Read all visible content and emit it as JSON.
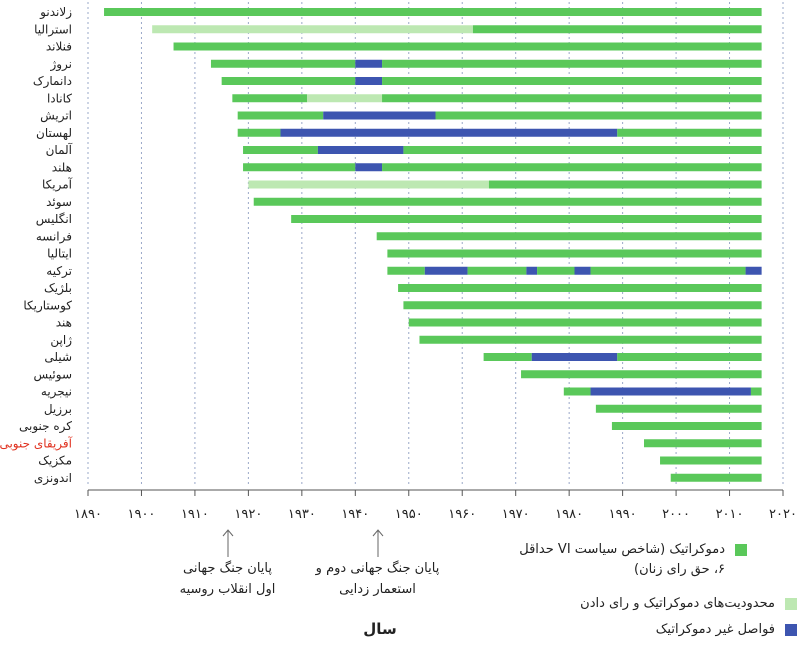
{
  "chart_data": {
    "type": "bar",
    "orientation": "horizontal-timeline",
    "xlabel": "سال",
    "xlim": [
      1890,
      2020
    ],
    "xtick_values": [
      1890,
      1900,
      1910,
      1920,
      1930,
      1940,
      1950,
      1960,
      1970,
      1980,
      1990,
      2000,
      2010,
      2020
    ],
    "xtick_labels": [
      "۱۸۹۰",
      "۱۹۰۰",
      "۱۹۱۰",
      "۱۹۲۰",
      "۱۹۳۰",
      "۱۹۴۰",
      "۱۹۵۰",
      "۱۹۶۰",
      "۱۹۷۰",
      "۱۹۸۰",
      "۱۹۹۰",
      "۲۰۰۰",
      "۲۰۱۰",
      "۲۰۲۰"
    ],
    "grid": "vertical dotted",
    "legend_position": "bottom-right",
    "colors": {
      "democracy": "#5ac85a",
      "restricted": "#bde8b2",
      "nondemocratic": "#3d55b0",
      "highlight_label": "#e0301e"
    },
    "legend": [
      {
        "key": "democracy",
        "label": "دموکراتیک (شاخص سیاست VI حداقل ۶، حق رای زنان)"
      },
      {
        "key": "restricted",
        "label": "محدودیت‌های دموکراتیک و رای دادن"
      },
      {
        "key": "nondemocratic",
        "label": "فواصل غیر دموکراتیک"
      }
    ],
    "annotations": [
      {
        "x": 1918,
        "text": "پایان جنگ جهانی اول انقلاب روسیه"
      },
      {
        "x": 1946,
        "text": "پایان جنگ جهانی دوم و استعمار زدایی"
      }
    ],
    "series": [
      {
        "country": "زلاندنو",
        "segments": [
          {
            "start": 1893,
            "end": 2016,
            "status": "democracy"
          }
        ]
      },
      {
        "country": "استرالیا",
        "segments": [
          {
            "start": 1902,
            "end": 1962,
            "status": "restricted"
          },
          {
            "start": 1962,
            "end": 2016,
            "status": "democracy"
          }
        ]
      },
      {
        "country": "فنلاند",
        "segments": [
          {
            "start": 1906,
            "end": 2016,
            "status": "democracy"
          }
        ]
      },
      {
        "country": "نروژ",
        "segments": [
          {
            "start": 1913,
            "end": 1940,
            "status": "democracy"
          },
          {
            "start": 1940,
            "end": 1945,
            "status": "nondemocratic"
          },
          {
            "start": 1945,
            "end": 2016,
            "status": "democracy"
          }
        ]
      },
      {
        "country": "دانمارک",
        "segments": [
          {
            "start": 1915,
            "end": 1940,
            "status": "democracy"
          },
          {
            "start": 1940,
            "end": 1945,
            "status": "nondemocratic"
          },
          {
            "start": 1945,
            "end": 2016,
            "status": "democracy"
          }
        ]
      },
      {
        "country": "کانادا",
        "segments": [
          {
            "start": 1917,
            "end": 1931,
            "status": "democracy"
          },
          {
            "start": 1931,
            "end": 1945,
            "status": "restricted"
          },
          {
            "start": 1945,
            "end": 2016,
            "status": "democracy"
          }
        ]
      },
      {
        "country": "اتریش",
        "segments": [
          {
            "start": 1918,
            "end": 1934,
            "status": "democracy"
          },
          {
            "start": 1934,
            "end": 1955,
            "status": "nondemocratic"
          },
          {
            "start": 1955,
            "end": 2016,
            "status": "democracy"
          }
        ]
      },
      {
        "country": "لهستان",
        "segments": [
          {
            "start": 1918,
            "end": 1926,
            "status": "democracy"
          },
          {
            "start": 1926,
            "end": 1989,
            "status": "nondemocratic"
          },
          {
            "start": 1989,
            "end": 2016,
            "status": "democracy"
          }
        ]
      },
      {
        "country": "آلمان",
        "segments": [
          {
            "start": 1919,
            "end": 1933,
            "status": "democracy"
          },
          {
            "start": 1933,
            "end": 1949,
            "status": "nondemocratic"
          },
          {
            "start": 1949,
            "end": 2016,
            "status": "democracy"
          }
        ]
      },
      {
        "country": "هلند",
        "segments": [
          {
            "start": 1919,
            "end": 1940,
            "status": "democracy"
          },
          {
            "start": 1940,
            "end": 1945,
            "status": "nondemocratic"
          },
          {
            "start": 1945,
            "end": 2016,
            "status": "democracy"
          }
        ]
      },
      {
        "country": "آمریکا",
        "segments": [
          {
            "start": 1920,
            "end": 1965,
            "status": "restricted"
          },
          {
            "start": 1965,
            "end": 2016,
            "status": "democracy"
          }
        ]
      },
      {
        "country": "سوئد",
        "segments": [
          {
            "start": 1921,
            "end": 2016,
            "status": "democracy"
          }
        ]
      },
      {
        "country": "انگلیس",
        "segments": [
          {
            "start": 1928,
            "end": 2016,
            "status": "democracy"
          }
        ]
      },
      {
        "country": "فرانسه",
        "segments": [
          {
            "start": 1944,
            "end": 2016,
            "status": "democracy"
          }
        ]
      },
      {
        "country": "ایتالیا",
        "segments": [
          {
            "start": 1946,
            "end": 2016,
            "status": "democracy"
          }
        ]
      },
      {
        "country": "ترکیه",
        "segments": [
          {
            "start": 1946,
            "end": 1953,
            "status": "democracy"
          },
          {
            "start": 1953,
            "end": 1961,
            "status": "nondemocratic"
          },
          {
            "start": 1961,
            "end": 1972,
            "status": "democracy"
          },
          {
            "start": 1972,
            "end": 1974,
            "status": "nondemocratic"
          },
          {
            "start": 1974,
            "end": 1981,
            "status": "democracy"
          },
          {
            "start": 1981,
            "end": 1984,
            "status": "nondemocratic"
          },
          {
            "start": 1984,
            "end": 2013,
            "status": "democracy"
          },
          {
            "start": 2013,
            "end": 2016,
            "status": "nondemocratic"
          }
        ]
      },
      {
        "country": "بلژیک",
        "segments": [
          {
            "start": 1948,
            "end": 2016,
            "status": "democracy"
          }
        ]
      },
      {
        "country": "کوستاریکا",
        "segments": [
          {
            "start": 1949,
            "end": 2016,
            "status": "democracy"
          }
        ]
      },
      {
        "country": "هند",
        "segments": [
          {
            "start": 1950,
            "end": 2016,
            "status": "democracy"
          }
        ]
      },
      {
        "country": "ژاپن",
        "segments": [
          {
            "start": 1952,
            "end": 2016,
            "status": "democracy"
          }
        ]
      },
      {
        "country": "شیلی",
        "segments": [
          {
            "start": 1964,
            "end": 1973,
            "status": "democracy"
          },
          {
            "start": 1973,
            "end": 1989,
            "status": "nondemocratic"
          },
          {
            "start": 1989,
            "end": 2016,
            "status": "democracy"
          }
        ]
      },
      {
        "country": "سوئیس",
        "segments": [
          {
            "start": 1971,
            "end": 2016,
            "status": "democracy"
          }
        ]
      },
      {
        "country": "نیجریه",
        "segments": [
          {
            "start": 1979,
            "end": 1984,
            "status": "democracy"
          },
          {
            "start": 1984,
            "end": 2014,
            "status": "nondemocratic"
          },
          {
            "start": 2014,
            "end": 2016,
            "status": "democracy"
          }
        ]
      },
      {
        "country": "برزیل",
        "segments": [
          {
            "start": 1985,
            "end": 2016,
            "status": "democracy"
          }
        ]
      },
      {
        "country": "کره جنوبی",
        "segments": [
          {
            "start": 1988,
            "end": 2016,
            "status": "democracy"
          }
        ]
      },
      {
        "country": "آفریقای جنوبی",
        "highlight": true,
        "segments": [
          {
            "start": 1994,
            "end": 2016,
            "status": "democracy"
          }
        ]
      },
      {
        "country": "مکزیک",
        "segments": [
          {
            "start": 1997,
            "end": 2016,
            "status": "democracy"
          }
        ]
      },
      {
        "country": "اندونزی",
        "segments": [
          {
            "start": 1999,
            "end": 2016,
            "status": "democracy"
          }
        ]
      }
    ]
  }
}
